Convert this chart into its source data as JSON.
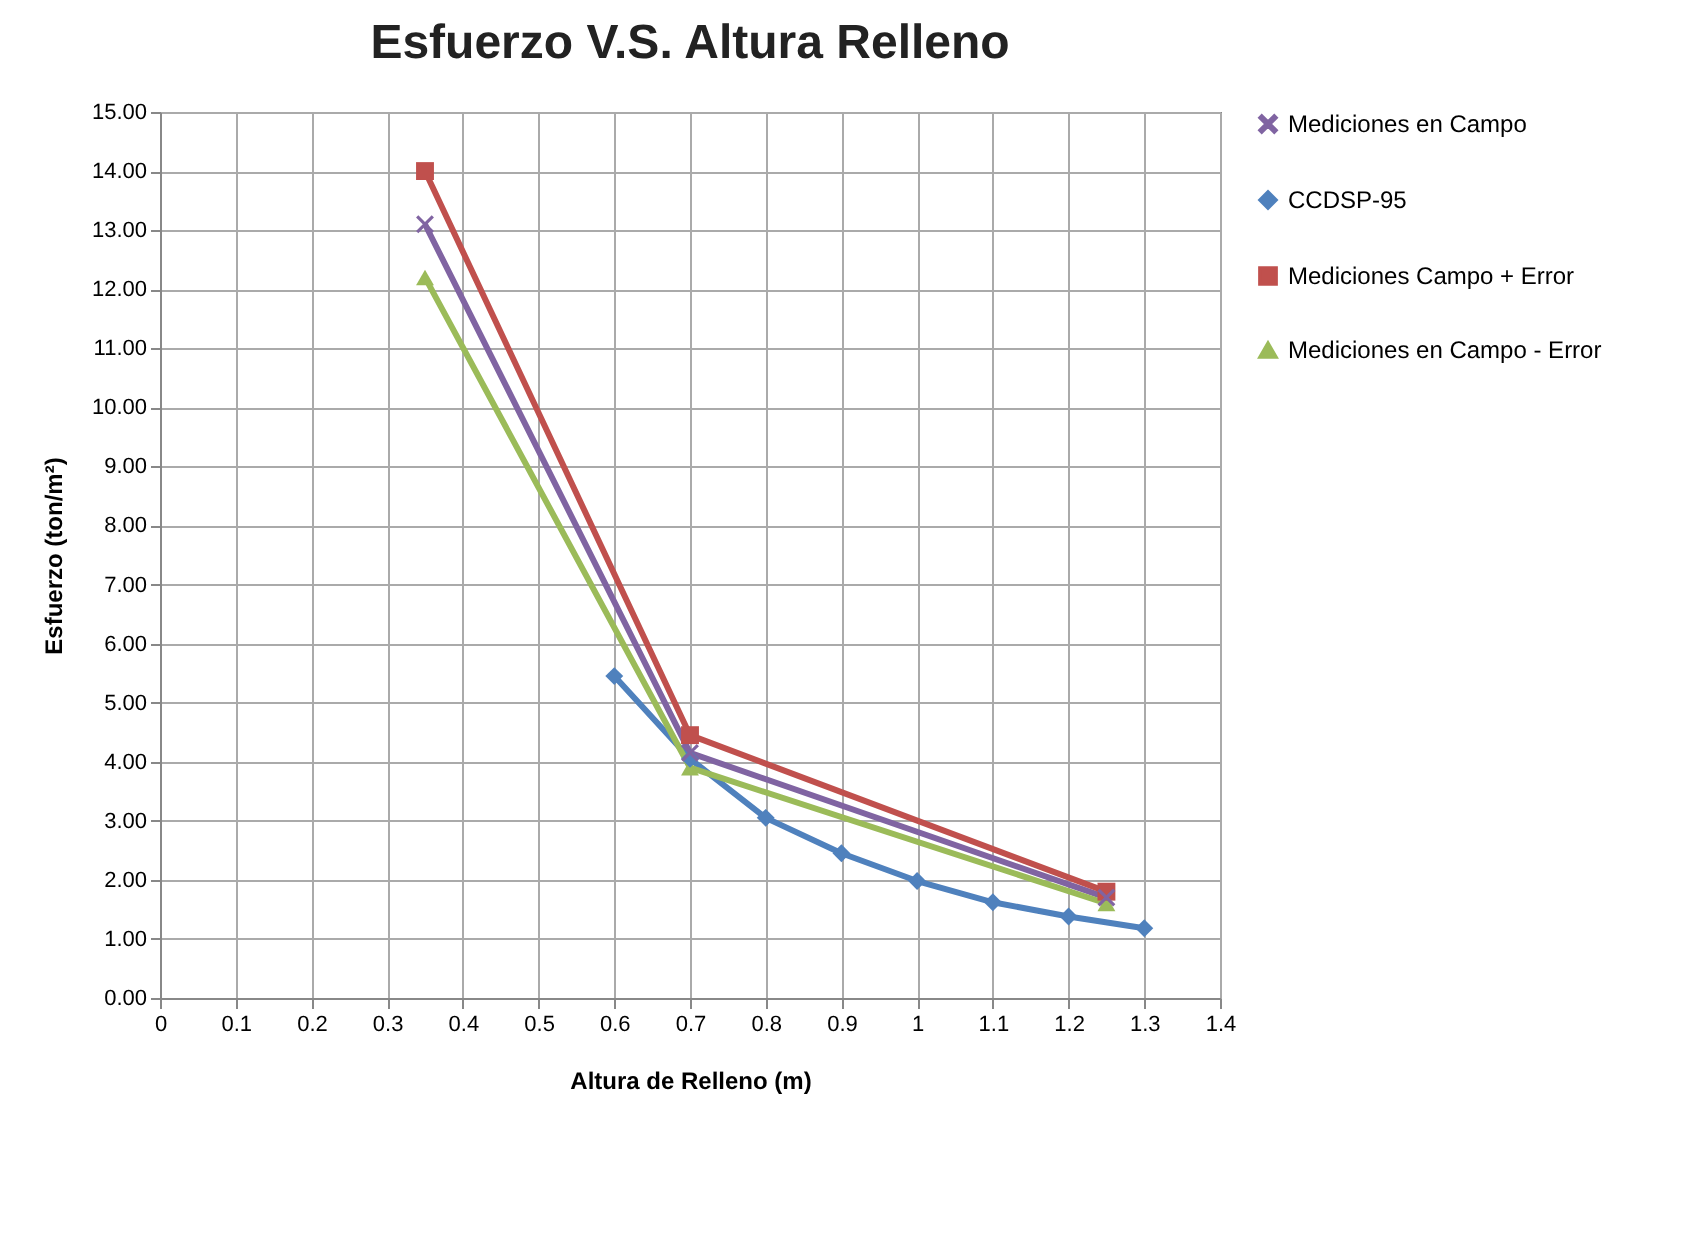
{
  "chart_data": {
    "type": "line",
    "title": "Esfuerzo V.S. Altura Relleno",
    "xlabel": "Altura de Relleno (m)",
    "ylabel": "Esfuerzo (ton/m²)",
    "xlim": [
      0,
      1.4
    ],
    "xticks": [
      0,
      0.1,
      0.2,
      0.3,
      0.4,
      0.5,
      0.6,
      0.7,
      0.8,
      0.9,
      1,
      1.1,
      1.2,
      1.3,
      1.4
    ],
    "ylim": [
      0,
      15
    ],
    "yticks": [
      {
        "value": 0,
        "label": "0.00"
      },
      {
        "value": 1,
        "label": "1.00"
      },
      {
        "value": 2,
        "label": "2.00"
      },
      {
        "value": 3,
        "label": "3.00"
      },
      {
        "value": 4,
        "label": "4.00"
      },
      {
        "value": 5,
        "label": "5.00"
      },
      {
        "value": 6,
        "label": "6.00"
      },
      {
        "value": 7,
        "label": "7.00"
      },
      {
        "value": 8,
        "label": "8.00"
      },
      {
        "value": 9,
        "label": "9.00"
      },
      {
        "value": 10,
        "label": "10.00"
      },
      {
        "value": 11,
        "label": "11.00"
      },
      {
        "value": 12,
        "label": "12.00"
      },
      {
        "value": 13,
        "label": "13.00"
      },
      {
        "value": 14,
        "label": "14.00"
      },
      {
        "value": 15,
        "label": "15.00"
      }
    ],
    "grid": true,
    "legend": "right",
    "line_style": "solid",
    "series": [
      {
        "name": "Mediciones en Campo",
        "color": "#8064a2",
        "marker": "cross",
        "x": [
          0.35,
          0.7,
          1.25
        ],
        "values": [
          13.1,
          4.15,
          1.7
        ]
      },
      {
        "name": "CCDSP-95",
        "color": "#4f81bd",
        "marker": "diamond",
        "x": [
          0.6,
          0.7,
          0.8,
          0.9,
          1.0,
          1.1,
          1.2,
          1.3
        ],
        "values": [
          5.45,
          4.05,
          3.05,
          2.45,
          1.98,
          1.62,
          1.38,
          1.18
        ]
      },
      {
        "name": "Mediciones Campo + Error",
        "color": "#c0504d",
        "marker": "square",
        "x": [
          0.35,
          0.7,
          1.25
        ],
        "values": [
          14.0,
          4.45,
          1.8
        ]
      },
      {
        "name": "Mediciones en Campo - Error",
        "color": "#9bbb59",
        "marker": "triangle",
        "x": [
          0.35,
          0.7,
          1.25
        ],
        "values": [
          12.2,
          3.9,
          1.6
        ]
      }
    ]
  }
}
